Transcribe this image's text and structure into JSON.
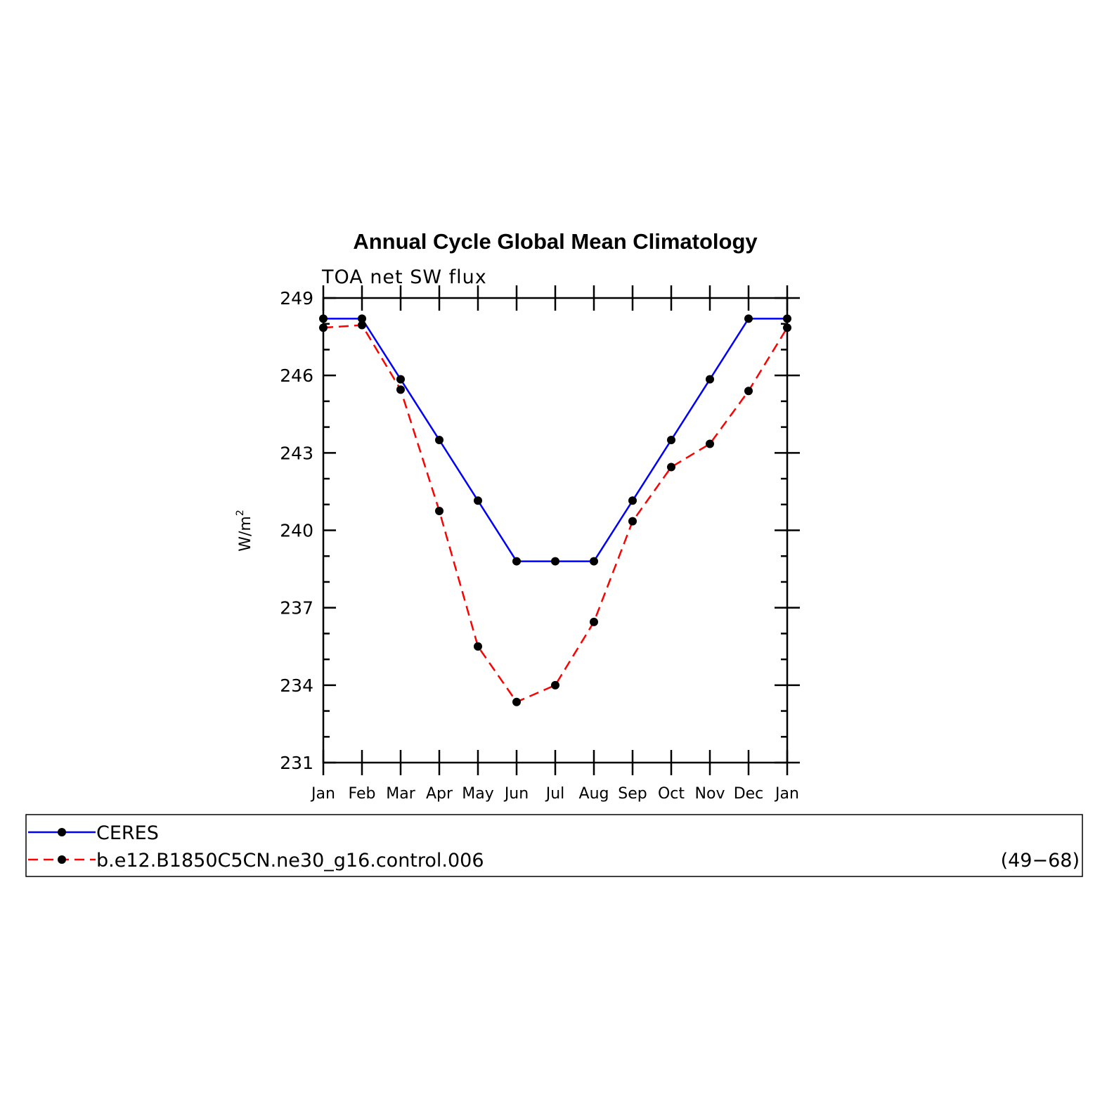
{
  "chart_data": {
    "type": "line",
    "title": "Annual Cycle Global Mean Climatology",
    "subtitle": "TOA net SW flux",
    "ylabel": "W/m",
    "ylabel_superscript": "2",
    "xlabel": "",
    "ylim": [
      231,
      249
    ],
    "yticks": [
      231,
      234,
      237,
      240,
      243,
      246,
      249
    ],
    "yticks_labels": [
      "231",
      "234",
      "237",
      "240",
      "243",
      "246",
      "249"
    ],
    "y_minor_step": 1,
    "categories": [
      "Jan",
      "Feb",
      "Mar",
      "Apr",
      "May",
      "Jun",
      "Jul",
      "Aug",
      "Sep",
      "Oct",
      "Nov",
      "Dec",
      "Jan"
    ],
    "grid": false,
    "legend_position": "bottom",
    "series": [
      {
        "name": "CERES",
        "color": "#0000ff",
        "dash": "solid",
        "values": [
          248.2,
          248.2,
          245.85,
          243.5,
          241.15,
          238.8,
          238.8,
          238.8,
          241.15,
          243.5,
          245.85,
          248.2,
          248.2
        ]
      },
      {
        "name": "b.e12.B1850C5CN.ne30_g16.control.006",
        "color": "#ff0000",
        "dash": "dashed",
        "values": [
          247.85,
          247.95,
          245.45,
          240.75,
          235.5,
          233.35,
          234.0,
          236.45,
          240.35,
          242.45,
          243.35,
          245.4,
          247.85
        ]
      }
    ],
    "legend_note": "(49−68)"
  }
}
